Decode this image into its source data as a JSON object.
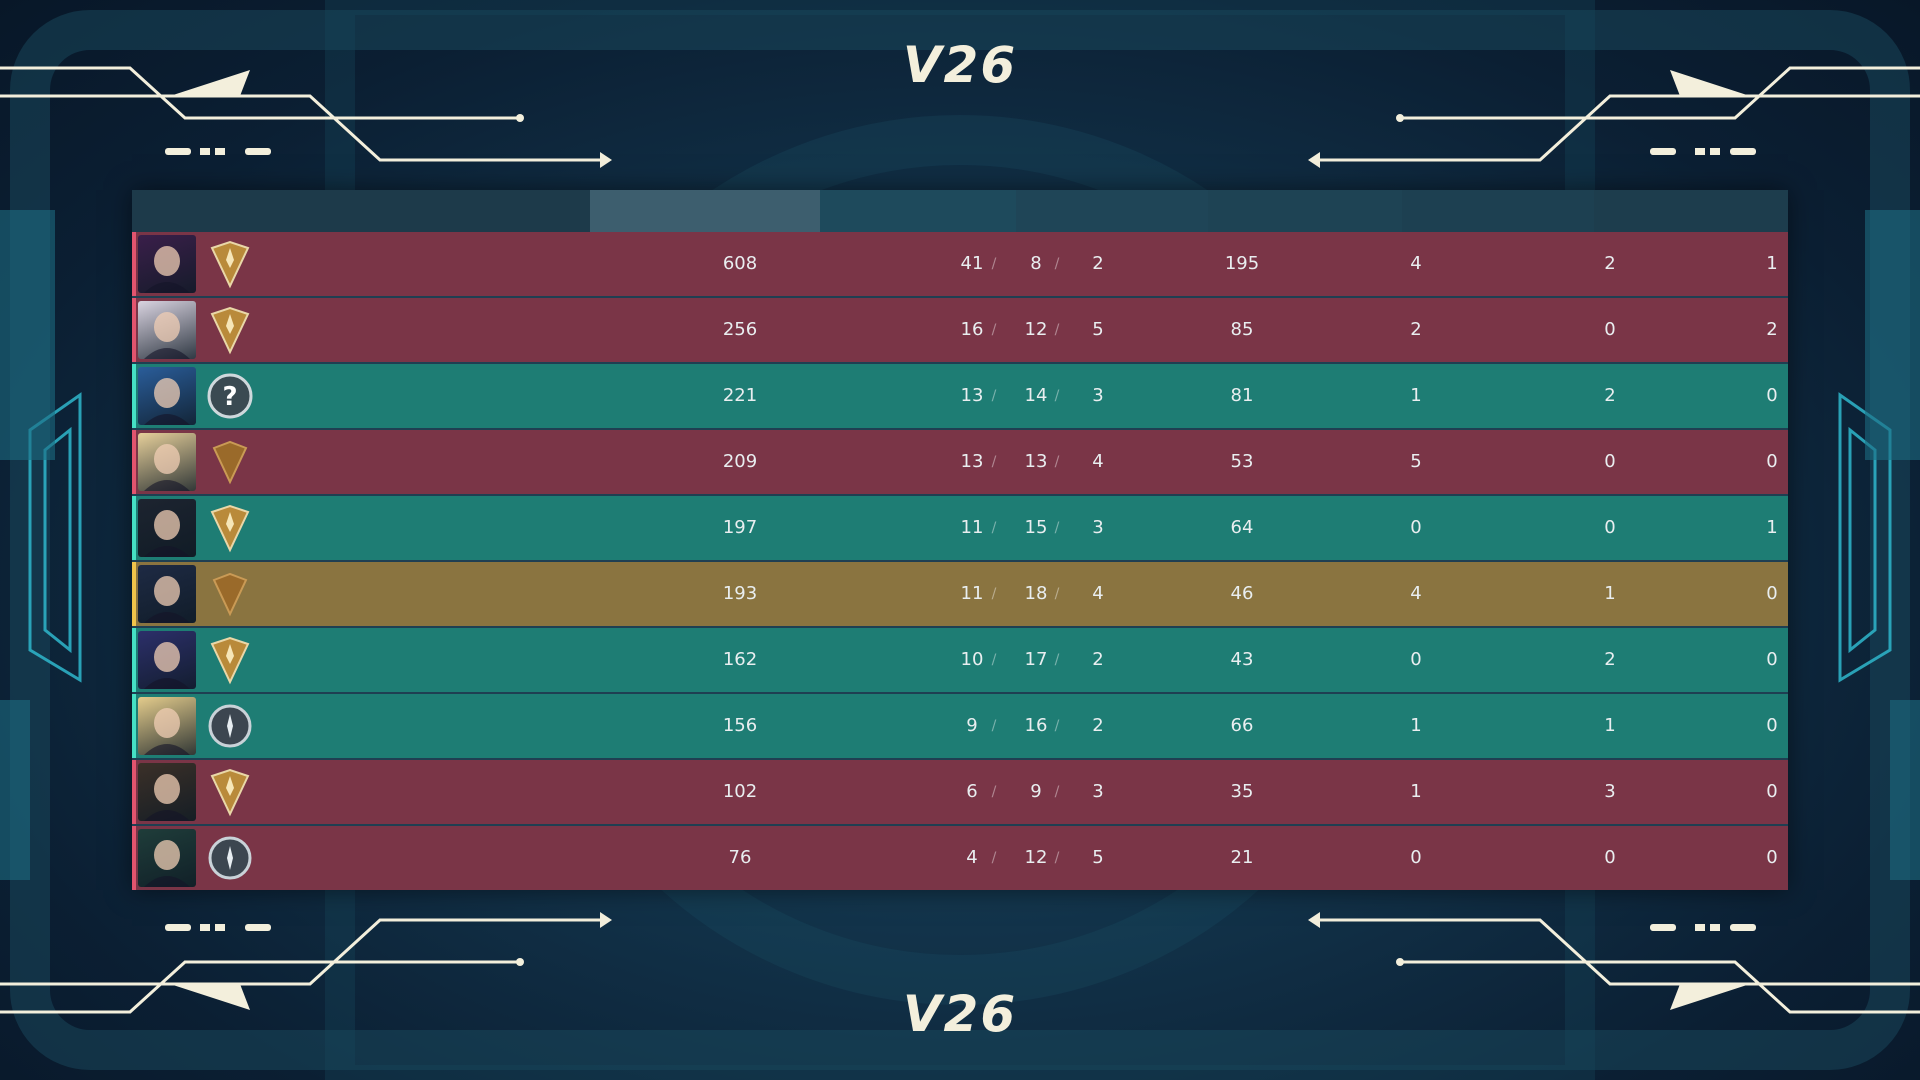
{
  "logo_text": "V26",
  "colors": {
    "red_row": "#7a3547",
    "teal_row": "#1e7d74",
    "yellow_row": "#8a7440",
    "accent_cream": "#f3efdc"
  },
  "rows": [
    {
      "team": "red",
      "rank_icon": "gold-rank-icon",
      "acs": "608",
      "k": "41",
      "d": "8",
      "a": "2",
      "adr": "195",
      "fk": "4",
      "fd": "2",
      "pl": "1"
    },
    {
      "team": "red",
      "rank_icon": "gold-rank-icon",
      "acs": "256",
      "k": "16",
      "d": "12",
      "a": "5",
      "adr": "85",
      "fk": "2",
      "fd": "0",
      "pl": "2"
    },
    {
      "team": "teal",
      "rank_icon": "unranked-icon",
      "acs": "221",
      "k": "13",
      "d": "14",
      "a": "3",
      "adr": "81",
      "fk": "1",
      "fd": "2",
      "pl": "0"
    },
    {
      "team": "red",
      "rank_icon": "bronze-rank-icon",
      "acs": "209",
      "k": "13",
      "d": "13",
      "a": "4",
      "adr": "53",
      "fk": "5",
      "fd": "0",
      "pl": "0"
    },
    {
      "team": "teal",
      "rank_icon": "gold-rank-icon",
      "acs": "197",
      "k": "11",
      "d": "15",
      "a": "3",
      "adr": "64",
      "fk": "0",
      "fd": "0",
      "pl": "1"
    },
    {
      "team": "yellow",
      "rank_icon": "bronze-rank-icon",
      "acs": "193",
      "k": "11",
      "d": "18",
      "a": "4",
      "adr": "46",
      "fk": "4",
      "fd": "1",
      "pl": "0"
    },
    {
      "team": "teal",
      "rank_icon": "gold-rank-icon",
      "acs": "162",
      "k": "10",
      "d": "17",
      "a": "2",
      "adr": "43",
      "fk": "0",
      "fd": "2",
      "pl": "0"
    },
    {
      "team": "teal",
      "rank_icon": "silver-rank-icon",
      "acs": "156",
      "k": "9",
      "d": "16",
      "a": "2",
      "adr": "66",
      "fk": "1",
      "fd": "1",
      "pl": "0"
    },
    {
      "team": "red",
      "rank_icon": "gold-rank-icon",
      "acs": "102",
      "k": "6",
      "d": "9",
      "a": "3",
      "adr": "35",
      "fk": "1",
      "fd": "3",
      "pl": "0"
    },
    {
      "team": "red",
      "rank_icon": "silver-rank-icon",
      "acs": "76",
      "k": "4",
      "d": "12",
      "a": "5",
      "adr": "21",
      "fk": "0",
      "fd": "0",
      "pl": "0"
    }
  ]
}
